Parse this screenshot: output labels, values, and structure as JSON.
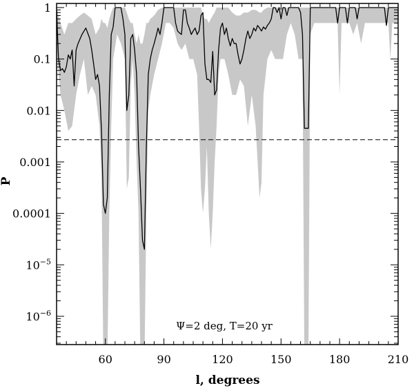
{
  "chart_data": {
    "type": "line",
    "xlabel": "l, degrees",
    "ylabel": "P",
    "xlim": [
      35,
      210
    ],
    "ylim_log10": [
      -6.55,
      0.08
    ],
    "y_scale": "log",
    "x_ticks": [
      {
        "value": 60,
        "label": "60"
      },
      {
        "value": 90,
        "label": "90"
      },
      {
        "value": 120,
        "label": "120"
      },
      {
        "value": 150,
        "label": "150"
      },
      {
        "value": 180,
        "label": "180"
      },
      {
        "value": 210,
        "label": "210"
      }
    ],
    "y_ticks": [
      {
        "exp": 0,
        "label": "1",
        "sup": ""
      },
      {
        "exp": -1,
        "label": "0.1",
        "sup": ""
      },
      {
        "exp": -2,
        "label": "0.01",
        "sup": ""
      },
      {
        "exp": -3,
        "label": "0.001",
        "sup": ""
      },
      {
        "exp": -4,
        "label": "0.0001",
        "sup": ""
      },
      {
        "exp": -5,
        "label": "10",
        "sup": "−5"
      },
      {
        "exp": -6,
        "label": "10",
        "sup": "−6"
      }
    ],
    "threshold": 0.0027,
    "annotation": "Ψ=2 deg, T=20 yr",
    "series": [
      {
        "style": "line",
        "color": "#000000",
        "x": [
          35,
          36,
          37,
          38,
          39,
          40,
          41,
          42,
          43,
          44,
          45,
          46,
          48,
          50,
          52,
          53,
          54,
          55,
          56,
          57,
          58,
          59,
          60,
          61,
          62,
          63,
          64,
          65,
          66,
          67,
          68,
          69,
          70,
          71,
          72,
          73,
          74,
          75,
          76,
          77,
          78,
          79,
          80,
          81,
          82,
          83,
          84,
          85,
          86,
          87,
          88,
          89,
          90,
          91,
          92,
          93,
          94,
          95,
          96,
          97,
          98,
          99,
          100,
          101,
          102,
          103,
          104,
          105,
          106,
          107,
          108,
          109,
          110,
          111,
          112,
          113,
          114,
          115,
          116,
          117,
          118,
          119,
          120,
          121,
          122,
          123,
          124,
          125,
          126,
          127,
          128,
          129,
          130,
          131,
          132,
          133,
          134,
          135,
          136,
          137,
          138,
          139,
          140,
          141,
          142,
          143,
          144,
          145,
          146,
          147,
          148,
          149,
          150,
          151,
          152,
          153,
          154,
          155,
          156,
          157,
          158,
          159,
          160,
          161,
          162,
          163,
          164,
          165,
          166,
          167,
          168,
          169,
          170,
          171,
          172,
          173,
          174,
          175,
          176,
          177,
          178,
          179,
          180,
          181,
          182,
          183,
          184,
          185,
          186,
          187,
          188,
          189,
          190,
          191,
          192,
          193,
          194,
          195,
          196,
          197,
          198,
          199,
          200,
          201,
          202,
          203,
          204,
          205,
          206,
          207,
          208,
          209,
          210
        ],
        "y": [
          0.9,
          0.1,
          0.06,
          0.065,
          0.055,
          0.07,
          0.12,
          0.1,
          0.15,
          0.03,
          0.15,
          0.2,
          0.3,
          0.4,
          0.25,
          0.15,
          0.08,
          0.04,
          0.05,
          0.03,
          0.004,
          0.00015,
          0.0001,
          0.0002,
          0.02,
          0.3,
          0.42,
          1,
          1,
          1,
          1,
          0.6,
          0.3,
          0.01,
          0.02,
          0.25,
          0.3,
          0.15,
          0.05,
          0.002,
          0.0003,
          3e-05,
          2e-05,
          0.002,
          0.05,
          0.1,
          0.15,
          0.2,
          0.28,
          0.4,
          0.3,
          0.5,
          1,
          1,
          1,
          1,
          1,
          1,
          0.5,
          0.35,
          0.32,
          0.3,
          0.9,
          0.9,
          0.5,
          0.4,
          0.3,
          0.35,
          0.4,
          0.3,
          0.35,
          0.7,
          0.8,
          0.08,
          0.04,
          0.04,
          0.035,
          0.14,
          0.02,
          0.025,
          0.15,
          0.4,
          0.5,
          0.3,
          0.4,
          0.25,
          0.18,
          0.25,
          0.2,
          0.2,
          0.12,
          0.08,
          0.1,
          0.15,
          0.25,
          0.35,
          0.25,
          0.3,
          0.4,
          0.35,
          0.45,
          0.4,
          0.35,
          0.42,
          0.38,
          0.45,
          0.5,
          0.6,
          1,
          1,
          0.8,
          1,
          0.6,
          1,
          1,
          0.7,
          1,
          1,
          1,
          1,
          1,
          1,
          0.8,
          0.3,
          0.0045,
          0.0045,
          0.0045,
          1,
          1,
          1,
          1,
          1,
          1,
          1,
          1,
          1,
          1,
          1,
          1,
          1,
          1,
          0.5,
          1,
          1,
          1,
          1,
          0.5,
          1,
          1,
          1,
          1,
          0.6,
          1,
          1,
          1,
          1,
          1,
          1,
          1,
          1,
          1,
          1,
          1,
          1,
          1,
          1,
          0.45,
          1,
          1,
          1,
          1,
          1,
          1
        ],
        "desc": "median"
      },
      {
        "style": "band",
        "color": "#c8c8c8",
        "x": [
          35,
          37,
          39,
          41,
          43,
          45,
          47,
          49,
          51,
          53,
          55,
          57,
          58,
          59,
          60,
          61,
          62,
          63,
          64,
          66,
          68,
          70,
          71,
          72,
          73,
          74,
          75,
          76,
          77,
          78,
          79,
          80,
          81,
          82,
          83,
          85,
          87,
          89,
          91,
          93,
          95,
          97,
          99,
          101,
          103,
          105,
          107,
          108,
          109,
          110,
          111,
          112,
          113,
          114,
          115,
          116,
          117,
          118,
          119,
          121,
          123,
          125,
          127,
          129,
          131,
          133,
          135,
          137,
          139,
          140,
          141,
          143,
          145,
          147,
          149,
          151,
          153,
          155,
          157,
          159,
          161,
          162,
          163,
          164,
          165,
          167,
          169,
          171,
          173,
          175,
          177,
          179,
          180,
          181,
          183,
          185,
          187,
          189,
          191,
          193,
          195,
          197,
          199,
          201,
          203,
          205,
          206,
          207,
          209,
          210
        ],
        "lower": [
          0.15,
          0.02,
          0.01,
          0.004,
          0.005,
          0.02,
          0.05,
          0.1,
          0.02,
          0.03,
          0.02,
          0.005,
          0.0005,
          1e-07,
          1e-07,
          1e-07,
          0.0001,
          0.005,
          0.1,
          0.3,
          0.2,
          0.1,
          0.0003,
          0.0005,
          0.03,
          0.1,
          0.02,
          0.001,
          0.0001,
          1e-07,
          1e-07,
          1e-07,
          0.0001,
          0.01,
          0.02,
          0.05,
          0.1,
          0.2,
          0.5,
          0.5,
          0.4,
          0.2,
          0.15,
          0.2,
          0.1,
          0.1,
          0.05,
          0.005,
          0.0003,
          0.0001,
          0.0003,
          0.002,
          0.0001,
          2e-05,
          0.0001,
          0.001,
          0.005,
          0.05,
          0.1,
          0.1,
          0.05,
          0.02,
          0.02,
          0.04,
          0.03,
          0.005,
          0.02,
          0.005,
          0.0002,
          0.0004,
          0.02,
          0.1,
          0.15,
          0.1,
          0.1,
          0.1,
          0.3,
          0.5,
          0.3,
          0.1,
          0.1,
          1e-07,
          1e-07,
          1e-07,
          0.3,
          0.5,
          0.5,
          0.5,
          0.5,
          0.5,
          0.5,
          0.5,
          0.02,
          0.5,
          0.5,
          0.5,
          0.3,
          0.5,
          0.2,
          0.5,
          0.5,
          0.5,
          0.5,
          0.5,
          0.5,
          0.5,
          0.1,
          0.5,
          0.5,
          0.5
        ],
        "upper": [
          1,
          0.5,
          0.3,
          0.5,
          0.5,
          0.6,
          0.7,
          0.8,
          0.7,
          0.6,
          0.3,
          0.4,
          0.6,
          0.5,
          0.5,
          0.4,
          0.6,
          0.8,
          1,
          1,
          1,
          1,
          0.8,
          0.6,
          0.5,
          0.5,
          0.3,
          0.2,
          0.3,
          0.2,
          0.2,
          0.3,
          0.5,
          0.5,
          0.6,
          0.7,
          0.9,
          1,
          1,
          1,
          1,
          1,
          1,
          1,
          1,
          1,
          1,
          1,
          1,
          0.7,
          0.6,
          0.6,
          0.5,
          0.6,
          0.7,
          0.8,
          1,
          1,
          1,
          1,
          1,
          0.8,
          0.7,
          0.7,
          0.8,
          0.8,
          0.9,
          0.9,
          0.8,
          0.8,
          0.9,
          1,
          1,
          1,
          1,
          1,
          1,
          1,
          1,
          1,
          1,
          1,
          1,
          1,
          1,
          1,
          1,
          1,
          1,
          1,
          1,
          1,
          1,
          1,
          1,
          1,
          1,
          1,
          1,
          1,
          1,
          1,
          1,
          1,
          1,
          1,
          1,
          1,
          1,
          1
        ],
        "desc": "spread"
      }
    ]
  }
}
